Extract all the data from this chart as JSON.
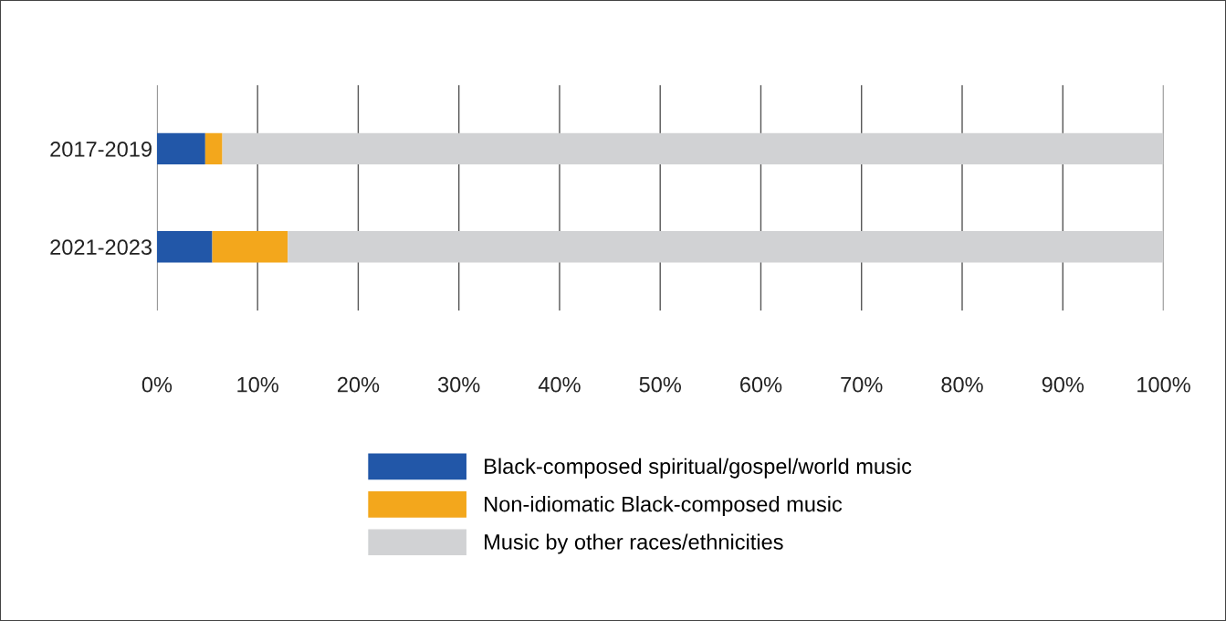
{
  "chart_data": {
    "type": "bar",
    "orientation": "horizontal",
    "stacked": true,
    "categories": [
      "2017-2019",
      "2021-2023"
    ],
    "series": [
      {
        "name": "Black-composed spiritual/gospel/world music",
        "color": "#2257a8",
        "values": [
          4.8,
          5.5
        ]
      },
      {
        "name": "Non-idiomatic Black-composed music",
        "color": "#f3a71c",
        "values": [
          1.7,
          7.5
        ]
      },
      {
        "name": "Music by other races/ethnicities",
        "color": "#d1d2d4",
        "values": [
          93.5,
          87.0
        ]
      }
    ],
    "xlim": [
      0,
      100
    ],
    "xticks": [
      {
        "value": 0,
        "label": "0%"
      },
      {
        "value": 10,
        "label": "10%"
      },
      {
        "value": 20,
        "label": "20%"
      },
      {
        "value": 30,
        "label": "30%"
      },
      {
        "value": 40,
        "label": "40%"
      },
      {
        "value": 50,
        "label": "50%"
      },
      {
        "value": 60,
        "label": "60%"
      },
      {
        "value": 70,
        "label": "70%"
      },
      {
        "value": 80,
        "label": "80%"
      },
      {
        "value": 90,
        "label": "90%"
      },
      {
        "value": 100,
        "label": "100%"
      }
    ],
    "grid": "x",
    "legend": "bottom"
  }
}
